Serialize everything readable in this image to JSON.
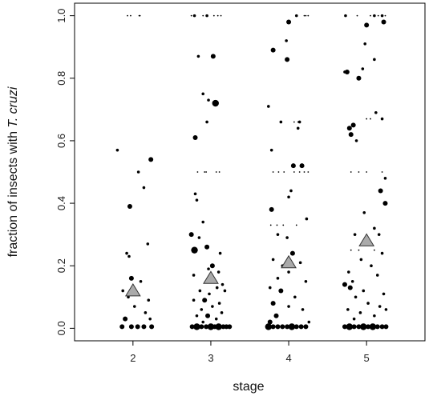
{
  "chart_data": {
    "type": "scatter",
    "xlabel": "stage",
    "ylabel_prefix": "fraction of insects with ",
    "ylabel_emph": "T. cruzi",
    "x_ticks": [
      "2",
      "3",
      "4",
      "5"
    ],
    "y_ticks": [
      "0.0",
      "0.2",
      "0.4",
      "0.6",
      "0.8",
      "1.0"
    ],
    "xlim": [
      1.25,
      5.75
    ],
    "ylim": [
      -0.04,
      1.04
    ],
    "point_color": "#000000",
    "mean_color": "#aaaaaa",
    "means": [
      {
        "stage": 2,
        "value": 0.12
      },
      {
        "stage": 3,
        "value": 0.16
      },
      {
        "stage": 4,
        "value": 0.21
      },
      {
        "stage": 5,
        "value": 0.28
      }
    ],
    "points": [
      {
        "x": 1.8,
        "y": 0.57,
        "s": 1
      },
      {
        "x": 2.23,
        "y": 0.54,
        "s": 2
      },
      {
        "x": 2.07,
        "y": 0.5,
        "s": 1
      },
      {
        "x": 2.14,
        "y": 0.45,
        "s": 1
      },
      {
        "x": 1.96,
        "y": 0.39,
        "s": 2
      },
      {
        "x": 2.19,
        "y": 0.27,
        "s": 1
      },
      {
        "x": 1.92,
        "y": 0.24,
        "s": 1
      },
      {
        "x": 1.95,
        "y": 0.23,
        "s": 1
      },
      {
        "x": 1.98,
        "y": 0.16,
        "s": 2
      },
      {
        "x": 2.1,
        "y": 0.15,
        "s": 1
      },
      {
        "x": 1.87,
        "y": 0.12,
        "s": 1
      },
      {
        "x": 1.94,
        "y": 0.1,
        "s": 1
      },
      {
        "x": 2.2,
        "y": 0.09,
        "s": 1
      },
      {
        "x": 2.02,
        "y": 0.07,
        "s": 1
      },
      {
        "x": 2.16,
        "y": 0.05,
        "s": 1
      },
      {
        "x": 2.22,
        "y": 0.03,
        "s": 1
      },
      {
        "x": 1.9,
        "y": 0.03,
        "s": 2
      },
      {
        "x": 1.86,
        "y": 0.005,
        "s": 2
      },
      {
        "x": 1.98,
        "y": 0.005,
        "s": 2
      },
      {
        "x": 2.06,
        "y": 0.005,
        "s": 2
      },
      {
        "x": 2.14,
        "y": 0.005,
        "s": 2
      },
      {
        "x": 2.24,
        "y": 0.005,
        "s": 2
      },
      {
        "x": 1.93,
        "y": 1,
        "s": 0
      },
      {
        "x": 1.97,
        "y": 1,
        "s": 0
      },
      {
        "x": 2.08,
        "y": 1,
        "s": 0
      },
      {
        "x": 2.09,
        "y": 1,
        "s": 0
      },
      {
        "x": 2.75,
        "y": 1,
        "s": 0
      },
      {
        "x": 2.79,
        "y": 1,
        "s": 1
      },
      {
        "x": 2.9,
        "y": 1,
        "s": 0
      },
      {
        "x": 2.95,
        "y": 1,
        "s": 1
      },
      {
        "x": 3.04,
        "y": 1,
        "s": 0
      },
      {
        "x": 3.09,
        "y": 1,
        "s": 0
      },
      {
        "x": 3.13,
        "y": 1,
        "s": 0
      },
      {
        "x": 2.84,
        "y": 0.87,
        "s": 1
      },
      {
        "x": 3.03,
        "y": 0.87,
        "s": 2
      },
      {
        "x": 2.9,
        "y": 0.75,
        "s": 1
      },
      {
        "x": 2.97,
        "y": 0.73,
        "s": 1
      },
      {
        "x": 3.06,
        "y": 0.72,
        "s": 3
      },
      {
        "x": 2.95,
        "y": 0.66,
        "s": 1
      },
      {
        "x": 2.8,
        "y": 0.61,
        "s": 2
      },
      {
        "x": 2.83,
        "y": 0.5,
        "s": 0
      },
      {
        "x": 2.92,
        "y": 0.5,
        "s": 0
      },
      {
        "x": 2.94,
        "y": 0.5,
        "s": 0
      },
      {
        "x": 3.07,
        "y": 0.5,
        "s": 0
      },
      {
        "x": 3.11,
        "y": 0.5,
        "s": 0
      },
      {
        "x": 2.8,
        "y": 0.43,
        "s": 1
      },
      {
        "x": 2.82,
        "y": 0.41,
        "s": 1
      },
      {
        "x": 2.9,
        "y": 0.34,
        "s": 1
      },
      {
        "x": 2.75,
        "y": 0.3,
        "s": 2
      },
      {
        "x": 2.85,
        "y": 0.29,
        "s": 1
      },
      {
        "x": 2.95,
        "y": 0.26,
        "s": 2
      },
      {
        "x": 2.79,
        "y": 0.25,
        "s": 3
      },
      {
        "x": 3.12,
        "y": 0.24,
        "s": 1
      },
      {
        "x": 3.02,
        "y": 0.2,
        "s": 2
      },
      {
        "x": 2.97,
        "y": 0.19,
        "s": 1
      },
      {
        "x": 3.1,
        "y": 0.18,
        "s": 1
      },
      {
        "x": 2.78,
        "y": 0.17,
        "s": 1
      },
      {
        "x": 3.04,
        "y": 0.15,
        "s": 1
      },
      {
        "x": 3.15,
        "y": 0.14,
        "s": 1
      },
      {
        "x": 3.08,
        "y": 0.13,
        "s": 1
      },
      {
        "x": 2.86,
        "y": 0.12,
        "s": 1
      },
      {
        "x": 3.18,
        "y": 0.12,
        "s": 1
      },
      {
        "x": 2.98,
        "y": 0.11,
        "s": 1
      },
      {
        "x": 2.78,
        "y": 0.09,
        "s": 1
      },
      {
        "x": 2.92,
        "y": 0.09,
        "s": 2
      },
      {
        "x": 3.11,
        "y": 0.08,
        "s": 1
      },
      {
        "x": 3.02,
        "y": 0.07,
        "s": 1
      },
      {
        "x": 2.88,
        "y": 0.06,
        "s": 1
      },
      {
        "x": 3.14,
        "y": 0.05,
        "s": 1
      },
      {
        "x": 2.82,
        "y": 0.04,
        "s": 1
      },
      {
        "x": 2.96,
        "y": 0.04,
        "s": 2
      },
      {
        "x": 3.07,
        "y": 0.03,
        "s": 1
      },
      {
        "x": 2.9,
        "y": 0.02,
        "s": 1
      },
      {
        "x": 2.76,
        "y": 0.005,
        "s": 2
      },
      {
        "x": 2.82,
        "y": 0.005,
        "s": 3
      },
      {
        "x": 2.88,
        "y": 0.005,
        "s": 2
      },
      {
        "x": 2.94,
        "y": 0.005,
        "s": 2
      },
      {
        "x": 3.0,
        "y": 0.005,
        "s": 3
      },
      {
        "x": 3.05,
        "y": 0.005,
        "s": 2
      },
      {
        "x": 3.1,
        "y": 0.005,
        "s": 3
      },
      {
        "x": 3.16,
        "y": 0.005,
        "s": 2
      },
      {
        "x": 3.2,
        "y": 0.005,
        "s": 2
      },
      {
        "x": 3.24,
        "y": 0.005,
        "s": 2
      },
      {
        "x": 4.1,
        "y": 1,
        "s": 1
      },
      {
        "x": 4.2,
        "y": 1,
        "s": 0
      },
      {
        "x": 4.22,
        "y": 1,
        "s": 0
      },
      {
        "x": 4.25,
        "y": 1,
        "s": 0
      },
      {
        "x": 4.0,
        "y": 0.98,
        "s": 2
      },
      {
        "x": 3.97,
        "y": 0.92,
        "s": 1
      },
      {
        "x": 3.8,
        "y": 0.89,
        "s": 2
      },
      {
        "x": 3.98,
        "y": 0.86,
        "s": 2
      },
      {
        "x": 3.74,
        "y": 0.71,
        "s": 1
      },
      {
        "x": 3.9,
        "y": 0.66,
        "s": 1
      },
      {
        "x": 4.07,
        "y": 0.66,
        "s": 0
      },
      {
        "x": 4.12,
        "y": 0.66,
        "s": 0
      },
      {
        "x": 4.14,
        "y": 0.66,
        "s": 1
      },
      {
        "x": 4.12,
        "y": 0.64,
        "s": 1
      },
      {
        "x": 3.78,
        "y": 0.57,
        "s": 1
      },
      {
        "x": 4.17,
        "y": 0.52,
        "s": 2
      },
      {
        "x": 4.06,
        "y": 0.52,
        "s": 2
      },
      {
        "x": 3.8,
        "y": 0.5,
        "s": 0
      },
      {
        "x": 3.87,
        "y": 0.5,
        "s": 0
      },
      {
        "x": 3.94,
        "y": 0.5,
        "s": 0
      },
      {
        "x": 4.07,
        "y": 0.5,
        "s": 0
      },
      {
        "x": 4.14,
        "y": 0.5,
        "s": 0
      },
      {
        "x": 4.2,
        "y": 0.5,
        "s": 0
      },
      {
        "x": 4.25,
        "y": 0.5,
        "s": 0
      },
      {
        "x": 4.03,
        "y": 0.44,
        "s": 1
      },
      {
        "x": 4.0,
        "y": 0.42,
        "s": 1
      },
      {
        "x": 3.78,
        "y": 0.38,
        "s": 2
      },
      {
        "x": 4.23,
        "y": 0.35,
        "s": 1
      },
      {
        "x": 3.77,
        "y": 0.33,
        "s": 0
      },
      {
        "x": 3.85,
        "y": 0.33,
        "s": 0
      },
      {
        "x": 3.93,
        "y": 0.33,
        "s": 0
      },
      {
        "x": 4.1,
        "y": 0.33,
        "s": 0
      },
      {
        "x": 3.86,
        "y": 0.3,
        "s": 1
      },
      {
        "x": 3.98,
        "y": 0.29,
        "s": 1
      },
      {
        "x": 4.05,
        "y": 0.24,
        "s": 2
      },
      {
        "x": 3.8,
        "y": 0.22,
        "s": 1
      },
      {
        "x": 4.15,
        "y": 0.21,
        "s": 1
      },
      {
        "x": 3.92,
        "y": 0.2,
        "s": 1
      },
      {
        "x": 4.0,
        "y": 0.18,
        "s": 1
      },
      {
        "x": 3.86,
        "y": 0.16,
        "s": 1
      },
      {
        "x": 4.22,
        "y": 0.15,
        "s": 1
      },
      {
        "x": 3.76,
        "y": 0.13,
        "s": 1
      },
      {
        "x": 3.9,
        "y": 0.12,
        "s": 2
      },
      {
        "x": 4.08,
        "y": 0.1,
        "s": 1
      },
      {
        "x": 3.8,
        "y": 0.08,
        "s": 2
      },
      {
        "x": 4.0,
        "y": 0.07,
        "s": 1
      },
      {
        "x": 4.18,
        "y": 0.06,
        "s": 1
      },
      {
        "x": 3.84,
        "y": 0.04,
        "s": 2
      },
      {
        "x": 3.76,
        "y": 0.02,
        "s": 2
      },
      {
        "x": 4.26,
        "y": 0.02,
        "s": 1
      },
      {
        "x": 3.74,
        "y": 0.005,
        "s": 3
      },
      {
        "x": 3.8,
        "y": 0.005,
        "s": 2
      },
      {
        "x": 3.86,
        "y": 0.005,
        "s": 2
      },
      {
        "x": 3.92,
        "y": 0.005,
        "s": 2
      },
      {
        "x": 3.98,
        "y": 0.005,
        "s": 2
      },
      {
        "x": 4.04,
        "y": 0.005,
        "s": 3
      },
      {
        "x": 4.1,
        "y": 0.005,
        "s": 2
      },
      {
        "x": 4.16,
        "y": 0.005,
        "s": 2
      },
      {
        "x": 4.22,
        "y": 0.005,
        "s": 2
      },
      {
        "x": 4.73,
        "y": 1,
        "s": 1
      },
      {
        "x": 4.88,
        "y": 1,
        "s": 0
      },
      {
        "x": 5.05,
        "y": 1,
        "s": 0
      },
      {
        "x": 5.1,
        "y": 1,
        "s": 1
      },
      {
        "x": 5.15,
        "y": 1,
        "s": 0
      },
      {
        "x": 5.2,
        "y": 1,
        "s": 1
      },
      {
        "x": 5.24,
        "y": 1,
        "s": 0
      },
      {
        "x": 5.22,
        "y": 0.98,
        "s": 2
      },
      {
        "x": 5.0,
        "y": 0.97,
        "s": 2
      },
      {
        "x": 4.98,
        "y": 0.91,
        "s": 1
      },
      {
        "x": 5.1,
        "y": 0.86,
        "s": 1
      },
      {
        "x": 4.95,
        "y": 0.83,
        "s": 1
      },
      {
        "x": 4.72,
        "y": 0.82,
        "s": 1
      },
      {
        "x": 4.75,
        "y": 0.82,
        "s": 2
      },
      {
        "x": 4.9,
        "y": 0.8,
        "s": 2
      },
      {
        "x": 5.12,
        "y": 0.69,
        "s": 1
      },
      {
        "x": 5.0,
        "y": 0.67,
        "s": 0
      },
      {
        "x": 5.05,
        "y": 0.67,
        "s": 0
      },
      {
        "x": 5.2,
        "y": 0.67,
        "s": 1
      },
      {
        "x": 4.83,
        "y": 0.65,
        "s": 2
      },
      {
        "x": 4.78,
        "y": 0.64,
        "s": 2
      },
      {
        "x": 4.8,
        "y": 0.62,
        "s": 2
      },
      {
        "x": 4.87,
        "y": 0.6,
        "s": 1
      },
      {
        "x": 4.8,
        "y": 0.5,
        "s": 0
      },
      {
        "x": 4.9,
        "y": 0.5,
        "s": 0
      },
      {
        "x": 5.0,
        "y": 0.5,
        "s": 0
      },
      {
        "x": 5.2,
        "y": 0.5,
        "s": 0
      },
      {
        "x": 5.24,
        "y": 0.48,
        "s": 1
      },
      {
        "x": 5.18,
        "y": 0.44,
        "s": 2
      },
      {
        "x": 5.24,
        "y": 0.4,
        "s": 2
      },
      {
        "x": 4.97,
        "y": 0.37,
        "s": 1
      },
      {
        "x": 5.1,
        "y": 0.32,
        "s": 1
      },
      {
        "x": 4.85,
        "y": 0.3,
        "s": 1
      },
      {
        "x": 5.16,
        "y": 0.3,
        "s": 1
      },
      {
        "x": 4.8,
        "y": 0.25,
        "s": 0
      },
      {
        "x": 4.9,
        "y": 0.25,
        "s": 0
      },
      {
        "x": 5.1,
        "y": 0.25,
        "s": 0
      },
      {
        "x": 5.2,
        "y": 0.24,
        "s": 1
      },
      {
        "x": 4.93,
        "y": 0.22,
        "s": 1
      },
      {
        "x": 5.06,
        "y": 0.2,
        "s": 1
      },
      {
        "x": 4.77,
        "y": 0.18,
        "s": 1
      },
      {
        "x": 5.14,
        "y": 0.17,
        "s": 1
      },
      {
        "x": 4.82,
        "y": 0.15,
        "s": 1
      },
      {
        "x": 4.72,
        "y": 0.14,
        "s": 2
      },
      {
        "x": 4.79,
        "y": 0.13,
        "s": 2
      },
      {
        "x": 4.96,
        "y": 0.12,
        "s": 1
      },
      {
        "x": 5.22,
        "y": 0.11,
        "s": 1
      },
      {
        "x": 4.86,
        "y": 0.1,
        "s": 1
      },
      {
        "x": 5.02,
        "y": 0.08,
        "s": 1
      },
      {
        "x": 5.17,
        "y": 0.07,
        "s": 1
      },
      {
        "x": 4.76,
        "y": 0.06,
        "s": 1
      },
      {
        "x": 4.92,
        "y": 0.05,
        "s": 1
      },
      {
        "x": 5.1,
        "y": 0.04,
        "s": 1
      },
      {
        "x": 5.25,
        "y": 0.06,
        "s": 1
      },
      {
        "x": 4.84,
        "y": 0.03,
        "s": 1
      },
      {
        "x": 4.72,
        "y": 0.005,
        "s": 2
      },
      {
        "x": 4.78,
        "y": 0.005,
        "s": 3
      },
      {
        "x": 4.84,
        "y": 0.005,
        "s": 2
      },
      {
        "x": 4.9,
        "y": 0.005,
        "s": 2
      },
      {
        "x": 4.96,
        "y": 0.005,
        "s": 3
      },
      {
        "x": 5.02,
        "y": 0.005,
        "s": 2
      },
      {
        "x": 5.08,
        "y": 0.005,
        "s": 3
      },
      {
        "x": 5.14,
        "y": 0.005,
        "s": 2
      },
      {
        "x": 5.2,
        "y": 0.005,
        "s": 2
      },
      {
        "x": 5.25,
        "y": 0.005,
        "s": 2
      }
    ]
  }
}
